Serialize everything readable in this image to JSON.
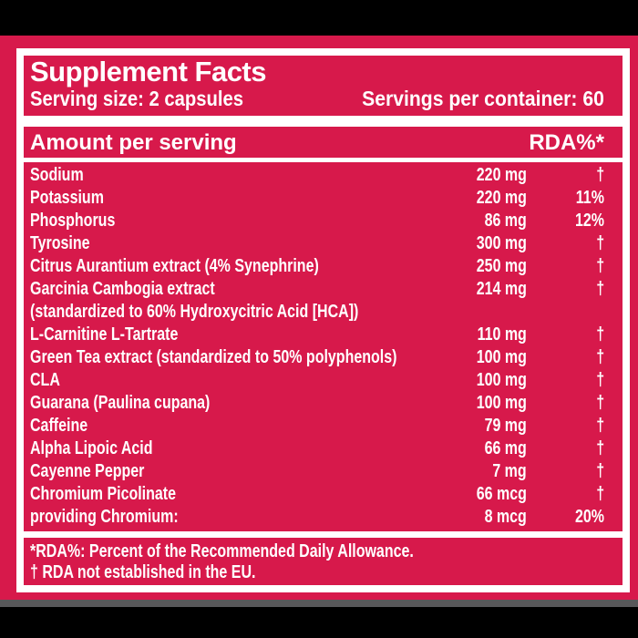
{
  "colors": {
    "background": "#d7194b",
    "text": "#ffffff",
    "outer_background": "#000000",
    "bottom_strip": "#58585a"
  },
  "header": {
    "title": "Supplement Facts",
    "serving_size": "Serving size: 2 capsules",
    "servings_per_container": "Servings per container: 60"
  },
  "table": {
    "amount_header": "Amount per serving",
    "rda_header": "RDA%*",
    "rows": [
      {
        "name": "Sodium",
        "amount": "220 mg",
        "rda": "†"
      },
      {
        "name": "Potassium",
        "amount": "220 mg",
        "rda": "11%"
      },
      {
        "name": "Phosphorus",
        "amount": "86 mg",
        "rda": "12%"
      },
      {
        "name": "Tyrosine",
        "amount": "300 mg",
        "rda": "†"
      },
      {
        "name": "Citrus Aurantium extract (4% Synephrine)",
        "amount": "250 mg",
        "rda": "†"
      },
      {
        "name": "Garcinia Cambogia extract",
        "amount": "214 mg",
        "rda": "†"
      },
      {
        "name": "(standardized to 60% Hydroxycitric Acid [HCA])",
        "amount": "",
        "rda": ""
      },
      {
        "name": "L-Carnitine L-Tartrate",
        "amount": "110 mg",
        "rda": "†"
      },
      {
        "name": "Green Tea extract (standardized to 50% polyphenols)",
        "amount": "100 mg",
        "rda": "†"
      },
      {
        "name": "CLA",
        "amount": "100 mg",
        "rda": "†"
      },
      {
        "name": "Guarana (Paulina cupana)",
        "amount": "100 mg",
        "rda": "†"
      },
      {
        "name": "Caffeine",
        "amount": "79 mg",
        "rda": "†"
      },
      {
        "name": "Alpha Lipoic Acid",
        "amount": "66 mg",
        "rda": "†"
      },
      {
        "name": "Cayenne Pepper",
        "amount": "7 mg",
        "rda": "†"
      },
      {
        "name": "Chromium Picolinate",
        "amount": "66 mcg",
        "rda": "†"
      },
      {
        "name": "providing Chromium:",
        "amount": "8 mcg",
        "rda": "20%"
      }
    ]
  },
  "footnotes": {
    "rda_note": "*RDA%: Percent of the Recommended Daily Allowance.",
    "dagger_note": "† RDA not established in the EU."
  }
}
